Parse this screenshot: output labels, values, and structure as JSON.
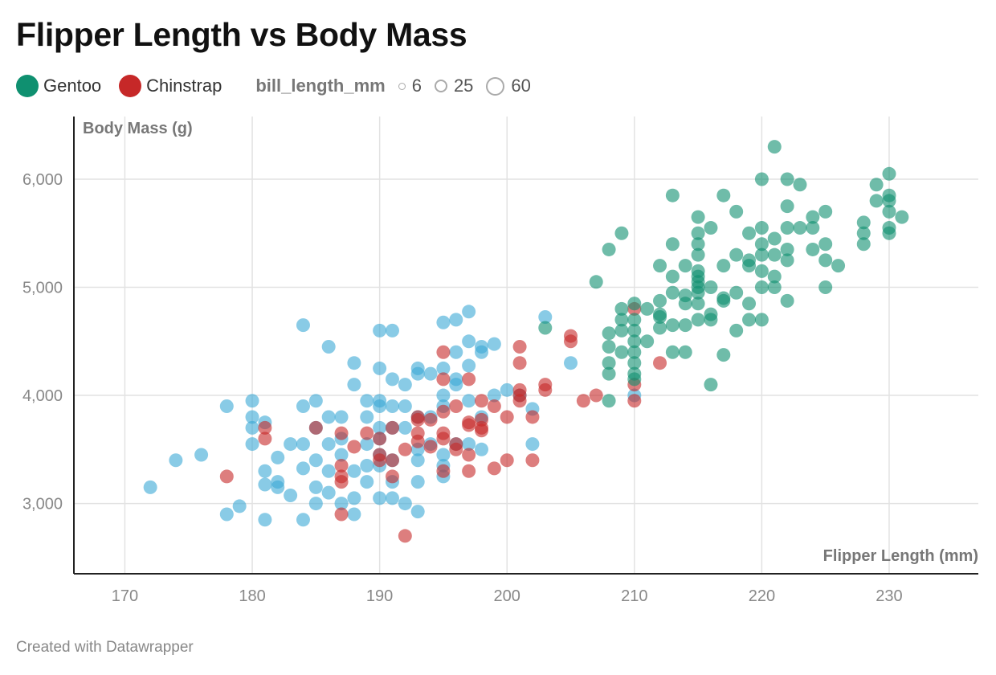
{
  "title": "Flipper Length vs Body Mass",
  "legend": {
    "species": [
      {
        "label": "Gentoo",
        "color": "#0f9070"
      },
      {
        "label": "Chinstrap",
        "color": "#c62828"
      }
    ],
    "size_title": "bill_length_mm",
    "sizes": [
      "6",
      "25",
      "60"
    ]
  },
  "footer": "Created with Datawrapper",
  "chart_data": {
    "type": "scatter",
    "title": "Flipper Length vs Body Mass",
    "xlabel": "Flipper Length (mm)",
    "ylabel": "Body Mass (g)",
    "xlim": [
      166,
      237
    ],
    "ylim": [
      2350,
      6580
    ],
    "x_ticks": [
      170,
      180,
      190,
      200,
      210,
      220,
      230
    ],
    "x_tick_labels": [
      "170",
      "180",
      "190",
      "200",
      "210",
      "220",
      "230"
    ],
    "y_ticks": [
      3000,
      4000,
      5000,
      6000
    ],
    "y_tick_labels": [
      "3,000",
      "4,000",
      "5,000",
      "6,000"
    ],
    "grid": true,
    "legend_position": "top-left",
    "series": [
      {
        "name": "",
        "color": "#3aa9d6",
        "points": [
          [
            172,
            3150
          ],
          [
            174,
            3400
          ],
          [
            176,
            3450
          ],
          [
            178,
            3900
          ],
          [
            178,
            2900
          ],
          [
            179,
            2975
          ],
          [
            180,
            3950
          ],
          [
            180,
            3800
          ],
          [
            180,
            3700
          ],
          [
            180,
            3550
          ],
          [
            181,
            3750
          ],
          [
            181,
            3300
          ],
          [
            181,
            3175
          ],
          [
            181,
            2850
          ],
          [
            182,
            3425
          ],
          [
            182,
            3200
          ],
          [
            182,
            3150
          ],
          [
            183,
            3550
          ],
          [
            183,
            3075
          ],
          [
            184,
            4650
          ],
          [
            184,
            3900
          ],
          [
            184,
            3550
          ],
          [
            184,
            3325
          ],
          [
            184,
            2850
          ],
          [
            185,
            3950
          ],
          [
            185,
            3700
          ],
          [
            185,
            3400
          ],
          [
            185,
            3150
          ],
          [
            185,
            3000
          ],
          [
            186,
            4450
          ],
          [
            186,
            3800
          ],
          [
            186,
            3550
          ],
          [
            186,
            3300
          ],
          [
            186,
            3100
          ],
          [
            187,
            3800
          ],
          [
            187,
            3600
          ],
          [
            187,
            3450
          ],
          [
            187,
            3000
          ],
          [
            188,
            4300
          ],
          [
            188,
            4100
          ],
          [
            188,
            3300
          ],
          [
            188,
            3050
          ],
          [
            188,
            2900
          ],
          [
            189,
            3950
          ],
          [
            189,
            3800
          ],
          [
            189,
            3550
          ],
          [
            189,
            3350
          ],
          [
            189,
            3200
          ],
          [
            190,
            4600
          ],
          [
            190,
            4250
          ],
          [
            190,
            3950
          ],
          [
            190,
            3900
          ],
          [
            190,
            3700
          ],
          [
            190,
            3600
          ],
          [
            190,
            3450
          ],
          [
            190,
            3350
          ],
          [
            190,
            3050
          ],
          [
            191,
            4600
          ],
          [
            191,
            4150
          ],
          [
            191,
            3900
          ],
          [
            191,
            3700
          ],
          [
            191,
            3400
          ],
          [
            191,
            3200
          ],
          [
            191,
            3050
          ],
          [
            192,
            4100
          ],
          [
            192,
            3900
          ],
          [
            192,
            3700
          ],
          [
            192,
            3000
          ],
          [
            193,
            4250
          ],
          [
            193,
            4200
          ],
          [
            193,
            3800
          ],
          [
            193,
            3500
          ],
          [
            193,
            3400
          ],
          [
            193,
            3200
          ],
          [
            193,
            2925
          ],
          [
            194,
            4200
          ],
          [
            194,
            3800
          ],
          [
            194,
            3550
          ],
          [
            195,
            4675
          ],
          [
            195,
            4250
          ],
          [
            195,
            4000
          ],
          [
            195,
            3900
          ],
          [
            195,
            3450
          ],
          [
            195,
            3350
          ],
          [
            195,
            3250
          ],
          [
            196,
            4700
          ],
          [
            196,
            4400
          ],
          [
            196,
            4150
          ],
          [
            196,
            4100
          ],
          [
            196,
            3550
          ],
          [
            197,
            4775
          ],
          [
            197,
            4500
          ],
          [
            197,
            4275
          ],
          [
            197,
            3950
          ],
          [
            197,
            3550
          ],
          [
            198,
            4450
          ],
          [
            198,
            4400
          ],
          [
            198,
            3800
          ],
          [
            198,
            3500
          ],
          [
            199,
            4475
          ],
          [
            199,
            4000
          ],
          [
            200,
            4050
          ],
          [
            201,
            4000
          ],
          [
            202,
            3875
          ],
          [
            202,
            3550
          ],
          [
            203,
            4725
          ],
          [
            205,
            4300
          ],
          [
            210,
            4000
          ]
        ]
      },
      {
        "name": "Chinstrap",
        "color": "#c62828",
        "points": [
          [
            178,
            3250
          ],
          [
            181,
            3700
          ],
          [
            181,
            3600
          ],
          [
            185,
            3700
          ],
          [
            187,
            3650
          ],
          [
            187,
            3350
          ],
          [
            187,
            3250
          ],
          [
            187,
            3200
          ],
          [
            187,
            2900
          ],
          [
            188,
            3525
          ],
          [
            189,
            3650
          ],
          [
            190,
            3600
          ],
          [
            190,
            3450
          ],
          [
            190,
            3400
          ],
          [
            191,
            3700
          ],
          [
            191,
            3400
          ],
          [
            191,
            3250
          ],
          [
            192,
            3500
          ],
          [
            192,
            2700
          ],
          [
            193,
            3800
          ],
          [
            193,
            3775
          ],
          [
            193,
            3650
          ],
          [
            193,
            3575
          ],
          [
            194,
            3775
          ],
          [
            194,
            3525
          ],
          [
            195,
            4400
          ],
          [
            195,
            4150
          ],
          [
            195,
            3850
          ],
          [
            195,
            3650
          ],
          [
            195,
            3600
          ],
          [
            195,
            3300
          ],
          [
            196,
            3900
          ],
          [
            196,
            3550
          ],
          [
            196,
            3500
          ],
          [
            197,
            4150
          ],
          [
            197,
            3750
          ],
          [
            197,
            3725
          ],
          [
            197,
            3450
          ],
          [
            197,
            3300
          ],
          [
            198,
            3950
          ],
          [
            198,
            3775
          ],
          [
            198,
            3700
          ],
          [
            198,
            3675
          ],
          [
            199,
            3900
          ],
          [
            199,
            3325
          ],
          [
            200,
            3800
          ],
          [
            200,
            3400
          ],
          [
            201,
            4450
          ],
          [
            201,
            4300
          ],
          [
            201,
            4050
          ],
          [
            201,
            4000
          ],
          [
            201,
            3950
          ],
          [
            202,
            3800
          ],
          [
            202,
            3400
          ],
          [
            203,
            4100
          ],
          [
            203,
            4050
          ],
          [
            205,
            4550
          ],
          [
            205,
            4500
          ],
          [
            206,
            3950
          ],
          [
            207,
            4000
          ],
          [
            210,
            4800
          ],
          [
            210,
            4100
          ],
          [
            210,
            3950
          ],
          [
            212,
            4300
          ]
        ]
      },
      {
        "name": "Gentoo",
        "color": "#0f9070",
        "points": [
          [
            203,
            4625
          ],
          [
            207,
            5050
          ],
          [
            208,
            5350
          ],
          [
            208,
            4575
          ],
          [
            208,
            4450
          ],
          [
            208,
            4300
          ],
          [
            208,
            4200
          ],
          [
            208,
            3950
          ],
          [
            209,
            5500
          ],
          [
            209,
            4800
          ],
          [
            209,
            4700
          ],
          [
            209,
            4600
          ],
          [
            209,
            4400
          ],
          [
            210,
            4850
          ],
          [
            210,
            4700
          ],
          [
            210,
            4600
          ],
          [
            210,
            4500
          ],
          [
            210,
            4400
          ],
          [
            210,
            4300
          ],
          [
            210,
            4200
          ],
          [
            210,
            4150
          ],
          [
            211,
            4800
          ],
          [
            211,
            4500
          ],
          [
            212,
            5200
          ],
          [
            212,
            4875
          ],
          [
            212,
            4750
          ],
          [
            212,
            4725
          ],
          [
            212,
            4625
          ],
          [
            213,
            5850
          ],
          [
            213,
            5400
          ],
          [
            213,
            5100
          ],
          [
            213,
            4950
          ],
          [
            213,
            4650
          ],
          [
            213,
            4400
          ],
          [
            214,
            5200
          ],
          [
            214,
            4925
          ],
          [
            214,
            4850
          ],
          [
            214,
            4650
          ],
          [
            214,
            4400
          ],
          [
            215,
            5650
          ],
          [
            215,
            5500
          ],
          [
            215,
            5400
          ],
          [
            215,
            5300
          ],
          [
            215,
            5150
          ],
          [
            215,
            5100
          ],
          [
            215,
            5050
          ],
          [
            215,
            5000
          ],
          [
            215,
            4950
          ],
          [
            215,
            4850
          ],
          [
            215,
            4700
          ],
          [
            216,
            5550
          ],
          [
            216,
            5000
          ],
          [
            216,
            4750
          ],
          [
            216,
            4700
          ],
          [
            216,
            4100
          ],
          [
            217,
            5850
          ],
          [
            217,
            5200
          ],
          [
            217,
            4900
          ],
          [
            217,
            4875
          ],
          [
            217,
            4375
          ],
          [
            218,
            5700
          ],
          [
            218,
            5300
          ],
          [
            218,
            4950
          ],
          [
            218,
            4600
          ],
          [
            219,
            5500
          ],
          [
            219,
            5250
          ],
          [
            219,
            5200
          ],
          [
            219,
            4850
          ],
          [
            219,
            4700
          ],
          [
            220,
            6000
          ],
          [
            220,
            5550
          ],
          [
            220,
            5400
          ],
          [
            220,
            5300
          ],
          [
            220,
            5150
          ],
          [
            220,
            5000
          ],
          [
            220,
            4700
          ],
          [
            221,
            6300
          ],
          [
            221,
            5450
          ],
          [
            221,
            5300
          ],
          [
            221,
            5100
          ],
          [
            221,
            5000
          ],
          [
            222,
            6000
          ],
          [
            222,
            5750
          ],
          [
            222,
            5550
          ],
          [
            222,
            5350
          ],
          [
            222,
            5250
          ],
          [
            222,
            4875
          ],
          [
            223,
            5950
          ],
          [
            223,
            5550
          ],
          [
            224,
            5650
          ],
          [
            224,
            5550
          ],
          [
            224,
            5350
          ],
          [
            225,
            5700
          ],
          [
            225,
            5400
          ],
          [
            225,
            5250
          ],
          [
            225,
            5000
          ],
          [
            226,
            5200
          ],
          [
            228,
            5600
          ],
          [
            228,
            5500
          ],
          [
            228,
            5400
          ],
          [
            229,
            5950
          ],
          [
            229,
            5800
          ],
          [
            230,
            6050
          ],
          [
            230,
            5850
          ],
          [
            230,
            5800
          ],
          [
            230,
            5700
          ],
          [
            230,
            5550
          ],
          [
            230,
            5500
          ],
          [
            231,
            5650
          ]
        ]
      }
    ]
  }
}
